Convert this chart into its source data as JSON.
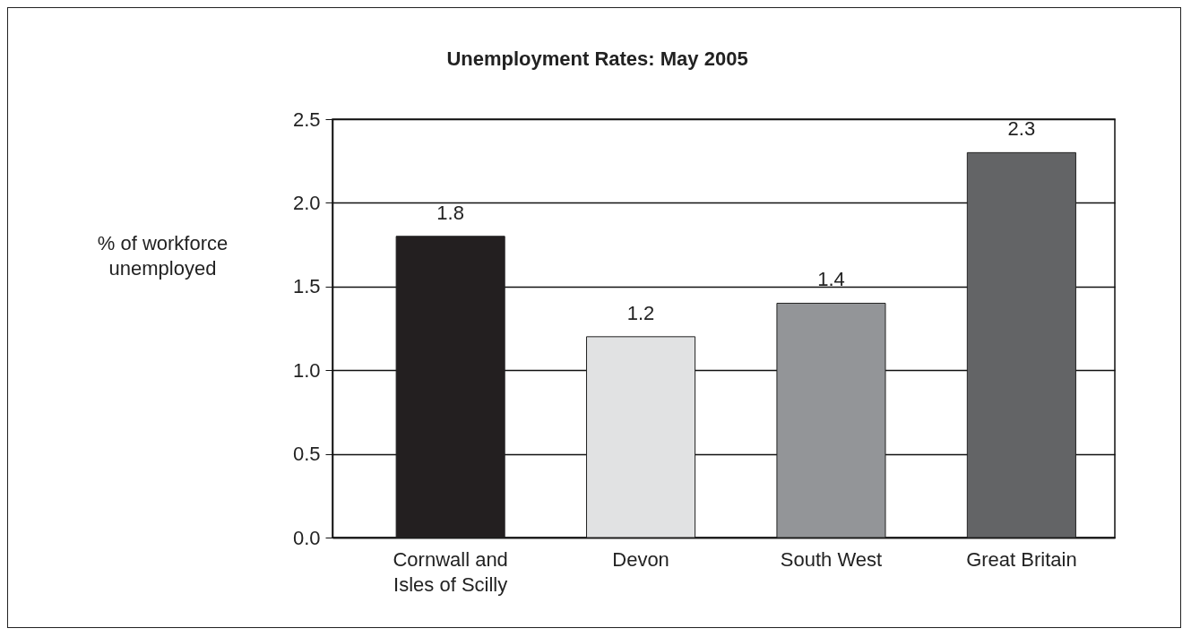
{
  "chart_data": {
    "type": "bar",
    "title": "Unemployment Rates: May 2005",
    "ylabel": "% of workforce unemployed",
    "categories": [
      "Cornwall and Isles of Scilly",
      "Devon",
      "South West",
      "Great Britain"
    ],
    "values": [
      1.8,
      1.2,
      1.4,
      2.3
    ],
    "colors": [
      "#231f20",
      "#e1e2e3",
      "#939598",
      "#636466"
    ],
    "ylim": [
      0,
      2.5
    ],
    "yticks": [
      {
        "value": 0,
        "label": "0.0"
      },
      0.5,
      {
        "value": 1,
        "label": "1.0"
      },
      1.5,
      {
        "value": 2,
        "label": "2.0"
      },
      2.5
    ],
    "grid": "y",
    "data_labels": true
  }
}
